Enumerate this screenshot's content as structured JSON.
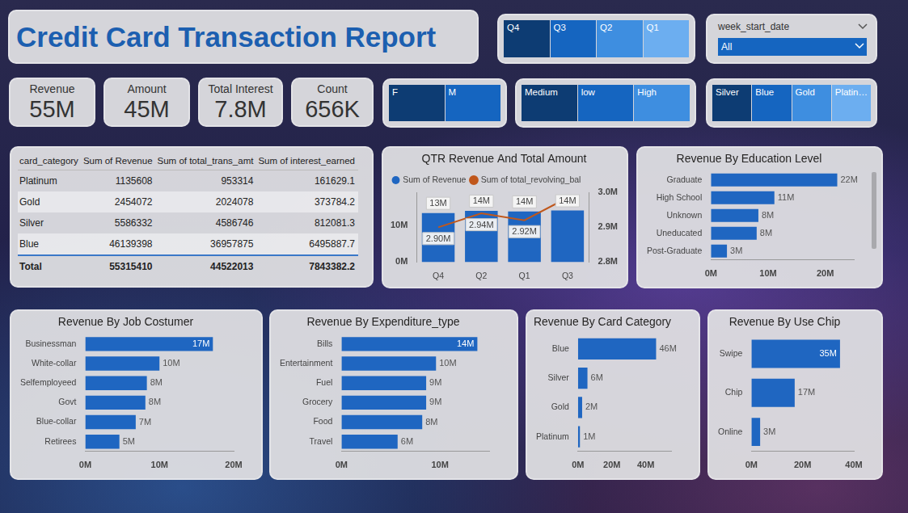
{
  "title": "Credit Card Transaction Report",
  "slicers": [
    {
      "items": [
        "Q4",
        "Q3",
        "Q2",
        "Q1"
      ]
    },
    {
      "label": "week_start_date",
      "selected": "All"
    },
    {
      "items": [
        "F",
        "M"
      ]
    },
    {
      "items": [
        "Medium",
        "low",
        "High"
      ]
    },
    {
      "items": [
        "Silver",
        "Blue",
        "Gold",
        "Platin…"
      ]
    }
  ],
  "kpis": [
    {
      "label": "Revenue",
      "value": "55M"
    },
    {
      "label": "Amount",
      "value": "45M"
    },
    {
      "label": "Total Interest",
      "value": "7.8M"
    },
    {
      "label": "Count",
      "value": "656K"
    }
  ],
  "table": {
    "columns": [
      "card_category",
      "Sum of Revenue",
      "Sum of total_trans_amt",
      "Sum of interest_earned"
    ],
    "rows": [
      [
        "Platinum",
        1135608,
        953314,
        161629.1
      ],
      [
        "Gold",
        2454072,
        2024078,
        373784.2
      ],
      [
        "Silver",
        5586332,
        4586746,
        812081.3
      ],
      [
        "Blue",
        46139398,
        36957875,
        6495887.7
      ]
    ],
    "total": [
      "Total",
      55315410,
      44522013,
      7843382.2
    ]
  },
  "chart_data": [
    {
      "type": "bar",
      "title": "QTR Revenue And Total Amount",
      "categories": [
        "Q4",
        "Q2",
        "Q1",
        "Q3"
      ],
      "series": [
        {
          "name": "Sum of Revenue",
          "type": "bar",
          "color": "#1f66c1",
          "values": [
            13.4,
            14.0,
            13.8,
            14.1
          ],
          "value_labels": [
            "13M",
            "14M",
            "14M",
            "14M"
          ]
        },
        {
          "name": "Sum of total_revolving_bal",
          "type": "line",
          "axis": "y2",
          "color": "#c0571b",
          "marker": "none",
          "values": [
            2.9,
            2.94,
            2.92,
            2.985
          ],
          "value_labels": [
            "2.90M",
            "2.94M",
            "2.92M",
            null
          ]
        }
      ],
      "ylim": [
        0,
        19
      ],
      "yticks": [
        {
          "value": 0,
          "label": "0M"
        },
        {
          "value": 10,
          "label": "10M"
        }
      ],
      "y2lim": [
        2.8,
        3.0
      ],
      "y2ticks": [
        {
          "value": 2.8,
          "label": "2.8M"
        },
        {
          "value": 2.9,
          "label": "2.9M"
        },
        {
          "value": 3.0,
          "label": "3.0M"
        }
      ],
      "data_labels": true,
      "legend": "top-left",
      "grid": false
    },
    {
      "type": "bar",
      "title": "Revenue By Education Level",
      "orientation": "horizontal",
      "categories": [
        "Graduate",
        "High School",
        "Unknown",
        "Uneducated",
        "Post-Graduate"
      ],
      "values": [
        22.1,
        11.1,
        8.3,
        8.0,
        2.8
      ],
      "value_labels": [
        "22M",
        "11M",
        "8M",
        "8M",
        "3M"
      ],
      "color": "#1f66c1",
      "xlim": [
        0,
        25
      ],
      "xticks": [
        {
          "value": 0,
          "label": "0M"
        },
        {
          "value": 10,
          "label": "10M"
        },
        {
          "value": 20,
          "label": "20M"
        }
      ],
      "data_labels": true,
      "grid": false
    },
    {
      "type": "bar",
      "title": "Revenue By Job Costumer",
      "orientation": "horizontal",
      "categories": [
        "Businessman",
        "White-collar",
        "Selfemployeed",
        "Govt",
        "Blue-collar",
        "Retirees"
      ],
      "values": [
        17.2,
        10.0,
        8.3,
        8.1,
        6.8,
        4.6
      ],
      "value_labels": [
        "17M",
        "10M",
        "8M",
        "8M",
        "7M",
        "5M"
      ],
      "color": "#1f66c1",
      "xlim": [
        0,
        20
      ],
      "xticks": [
        {
          "value": 0,
          "label": "0M"
        },
        {
          "value": 10,
          "label": "10M"
        },
        {
          "value": 20,
          "label": "20M"
        }
      ],
      "data_labels": true,
      "grid": false
    },
    {
      "type": "bar",
      "title": "Revenue By Expenditure_type",
      "orientation": "horizontal",
      "categories": [
        "Bills",
        "Entertainment",
        "Fuel",
        "Grocery",
        "Food",
        "Travel"
      ],
      "values": [
        13.8,
        9.6,
        8.6,
        8.6,
        8.2,
        5.7
      ],
      "value_labels": [
        "14M",
        "10M",
        "9M",
        "9M",
        "8M",
        "6M"
      ],
      "color": "#1f66c1",
      "xlim": [
        0,
        15
      ],
      "xticks": [
        {
          "value": 0,
          "label": "0M"
        },
        {
          "value": 10,
          "label": "10M"
        }
      ],
      "data_labels": true,
      "grid": false
    },
    {
      "type": "bar",
      "title": "Revenue By Card Category",
      "orientation": "horizontal",
      "categories": [
        "Blue",
        "Silver",
        "Gold",
        "Platinum"
      ],
      "values": [
        46.14,
        5.59,
        2.45,
        1.14
      ],
      "value_labels": [
        "46M",
        "6M",
        "2M",
        "1M"
      ],
      "color": "#1f66c1",
      "xlim": [
        0,
        55
      ],
      "xticks": [
        {
          "value": 0,
          "label": "0M"
        },
        {
          "value": 20,
          "label": "20M"
        },
        {
          "value": 40,
          "label": "40M"
        }
      ],
      "data_labels": true,
      "grid": false
    },
    {
      "type": "bar",
      "title": "Revenue By Use Chip",
      "orientation": "horizontal",
      "categories": [
        "Swipe",
        "Chip",
        "Online"
      ],
      "values": [
        34.6,
        16.9,
        3.4
      ],
      "value_labels": [
        "35M",
        "17M",
        "3M"
      ],
      "color": "#1f66c1",
      "xlim": [
        0,
        40
      ],
      "xticks": [
        {
          "value": 0,
          "label": "0M"
        },
        {
          "value": 20,
          "label": "20M"
        },
        {
          "value": 40,
          "label": "40M"
        }
      ],
      "data_labels": true,
      "grid": false
    }
  ]
}
